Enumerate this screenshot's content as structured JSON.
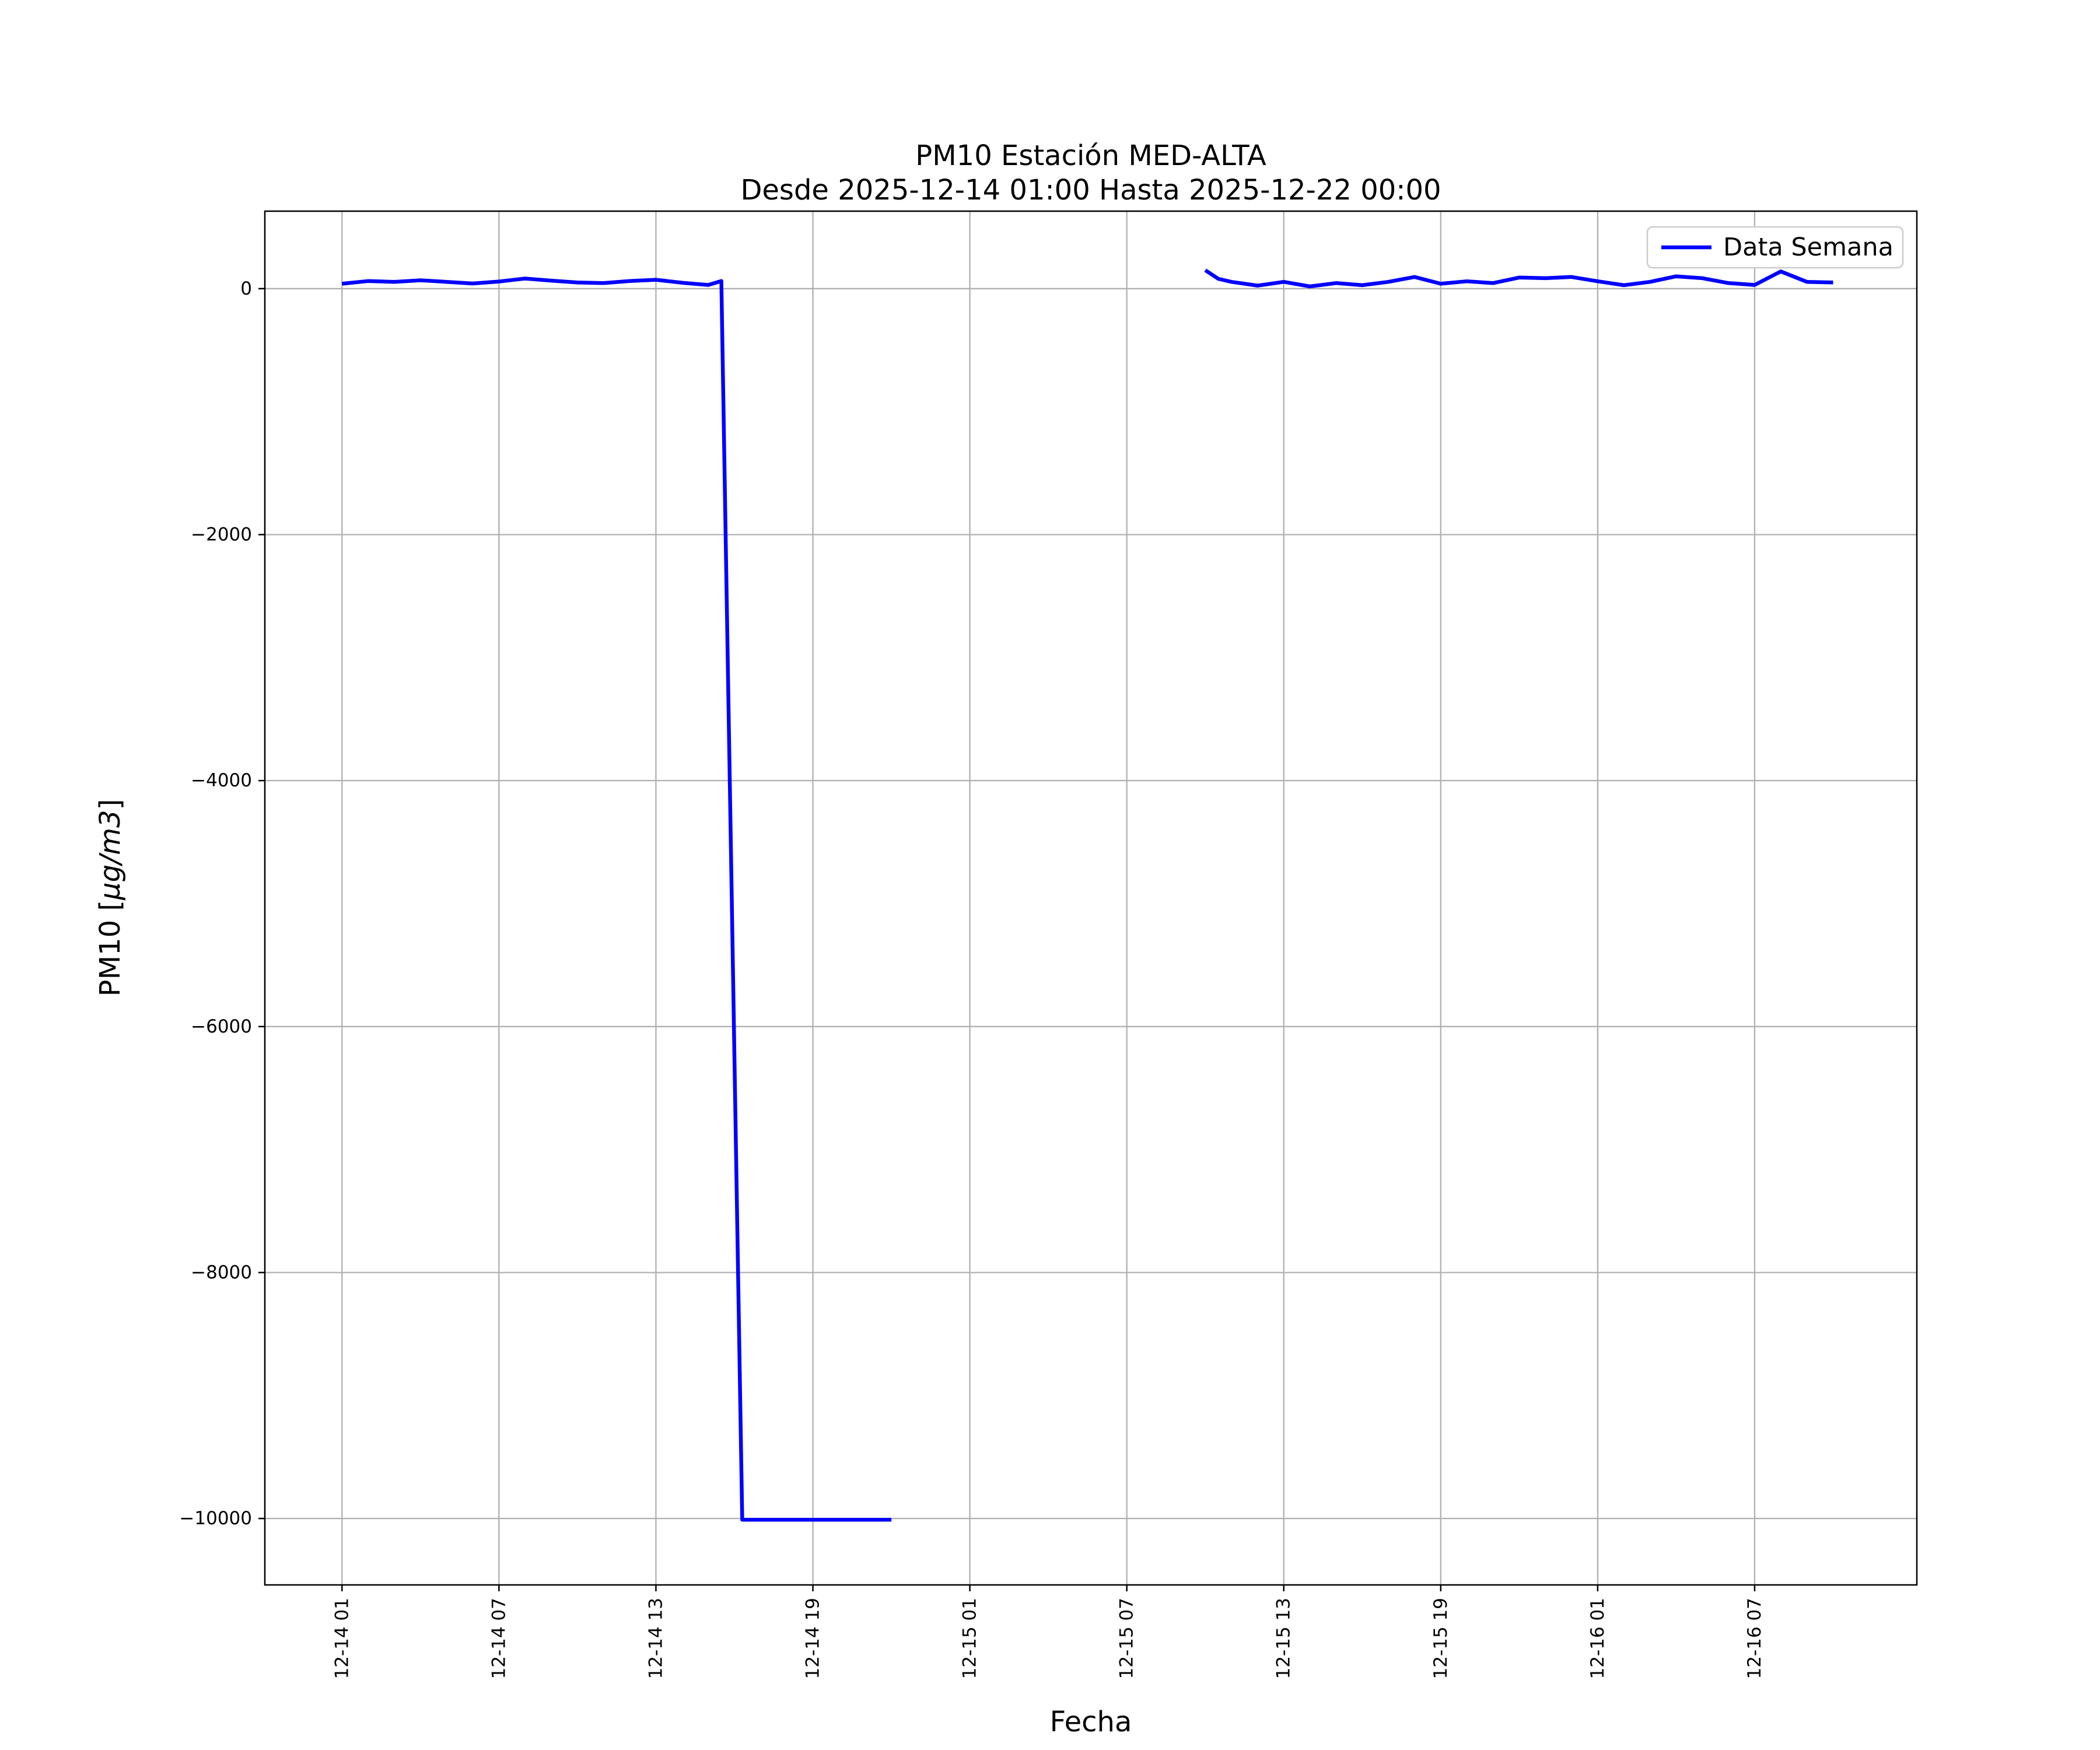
{
  "figure": {
    "background": "#ffffff"
  },
  "chart_data": {
    "type": "line",
    "title_line1": "PM10 Estación MED-ALTA",
    "title_line2": "Desde 2025-12-14 01:00 Hasta 2025-12-22 00:00",
    "xlabel": "Fecha",
    "ylabel_pre": "PM10 [",
    "ylabel_italic": "μg/m3",
    "ylabel_post": "]",
    "grid": true,
    "grid_color": "#b0b0b0",
    "axis_color": "#000000",
    "line_color": "#0000ff",
    "legend": [
      {
        "label": "Data Semana",
        "color": "#0000ff"
      }
    ],
    "legend_location": "upper right",
    "x_axis_unit": "hours since 2025-12-14 00:00",
    "xlim_hours": [
      -1.95,
      61.2
    ],
    "ylim": [
      -10540,
      630
    ],
    "x_ticks": [
      {
        "hour": 1,
        "label": "12-14 01"
      },
      {
        "hour": 7,
        "label": "12-14 07"
      },
      {
        "hour": 13,
        "label": "12-14 13"
      },
      {
        "hour": 19,
        "label": "12-14 19"
      },
      {
        "hour": 25,
        "label": "12-15 01"
      },
      {
        "hour": 31,
        "label": "12-15 07"
      },
      {
        "hour": 37,
        "label": "12-15 13"
      },
      {
        "hour": 43,
        "label": "12-15 19"
      },
      {
        "hour": 49,
        "label": "12-16 01"
      },
      {
        "hour": 55,
        "label": "12-16 07"
      }
    ],
    "y_ticks": [
      {
        "value": 0,
        "label": "0"
      },
      {
        "value": -2000,
        "label": "−2000"
      },
      {
        "value": -4000,
        "label": "−4000"
      },
      {
        "value": -6000,
        "label": "−6000"
      },
      {
        "value": -8000,
        "label": "−8000"
      },
      {
        "value": -10000,
        "label": "−10000"
      }
    ],
    "series": [
      {
        "name": "Data Semana",
        "segments": [
          [
            [
              1,
              40
            ],
            [
              2,
              62
            ],
            [
              3,
              55
            ],
            [
              4,
              68
            ],
            [
              5,
              55
            ],
            [
              6,
              42
            ],
            [
              7,
              58
            ],
            [
              8,
              82
            ],
            [
              9,
              65
            ],
            [
              10,
              50
            ],
            [
              11,
              45
            ],
            [
              12,
              62
            ],
            [
              13,
              72
            ],
            [
              14,
              48
            ],
            [
              15,
              30
            ],
            [
              15.5,
              62
            ],
            [
              16.3,
              -10010
            ],
            [
              17,
              -10010
            ],
            [
              18,
              -10010
            ],
            [
              19,
              -10010
            ],
            [
              20,
              -10010
            ],
            [
              21,
              -10010
            ],
            [
              22,
              -10010
            ]
          ],
          [
            [
              34,
              150
            ],
            [
              34.5,
              80
            ],
            [
              35,
              55
            ],
            [
              36,
              25
            ],
            [
              37,
              55
            ],
            [
              38,
              18
            ],
            [
              39,
              45
            ],
            [
              40,
              28
            ],
            [
              41,
              55
            ],
            [
              42,
              95
            ],
            [
              43,
              40
            ],
            [
              44,
              60
            ],
            [
              45,
              45
            ],
            [
              46,
              90
            ],
            [
              47,
              85
            ],
            [
              48,
              95
            ],
            [
              49,
              60
            ],
            [
              50,
              28
            ],
            [
              51,
              55
            ],
            [
              52,
              100
            ],
            [
              53,
              85
            ],
            [
              54,
              45
            ],
            [
              55,
              30
            ],
            [
              56,
              140
            ],
            [
              57,
              55
            ],
            [
              58,
              50
            ]
          ]
        ]
      }
    ]
  }
}
